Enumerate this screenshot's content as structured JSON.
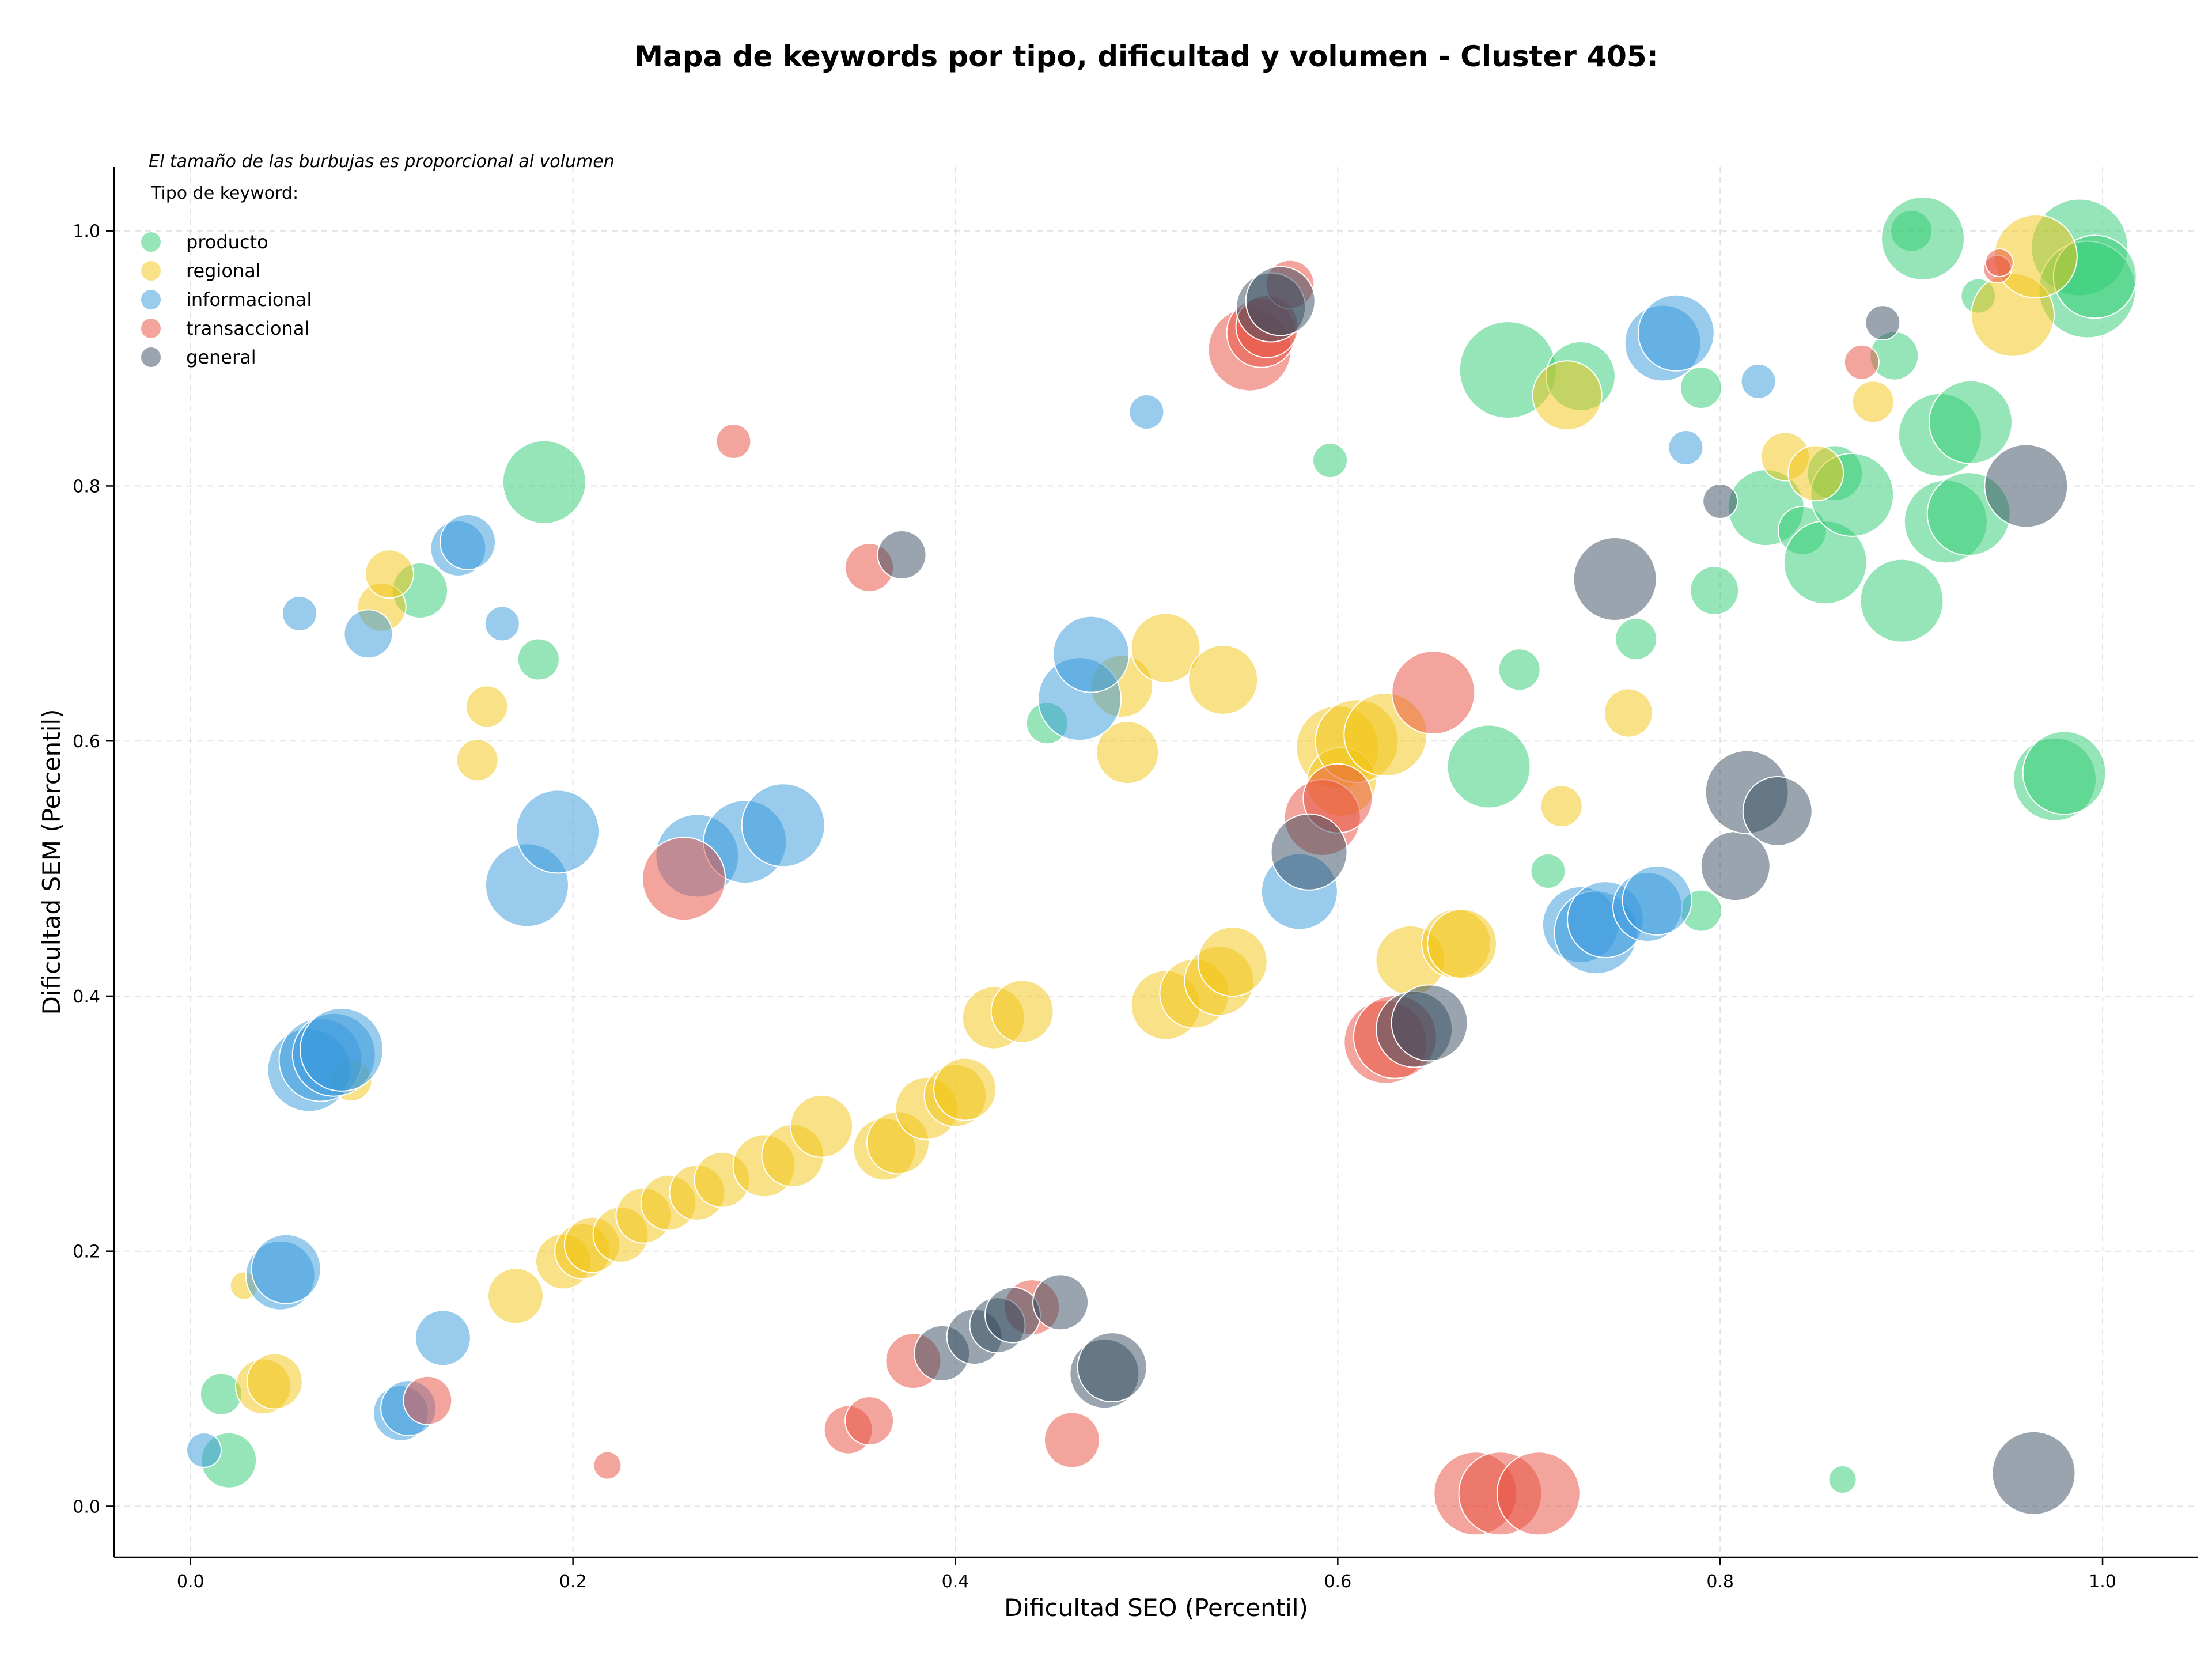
{
  "chart_data": {
    "type": "scatter",
    "title": "Mapa de keywords por tipo, dificultad y volumen - Cluster 405:",
    "subtitle": "El tamaño de las burbujas es proporcional al volumen",
    "xlabel": "Dificultad SEO (Percentil)",
    "ylabel": "Dificultad SEM (Percentil)",
    "xlim": [
      -0.04,
      1.05
    ],
    "ylim": [
      -0.04,
      1.05
    ],
    "x_ticks": [
      "0.0",
      "0.2",
      "0.4",
      "0.6",
      "0.8",
      "1.0"
    ],
    "x_tick_values": [
      0.0,
      0.2,
      0.4,
      0.6,
      0.8,
      1.0
    ],
    "y_ticks": [
      "0.0",
      "0.2",
      "0.4",
      "0.6",
      "0.8",
      "1.0"
    ],
    "y_tick_values": [
      0.0,
      0.2,
      0.4,
      0.6,
      0.8,
      1.0
    ],
    "grid": true,
    "legend_title": "Tipo de keyword:",
    "legend_position": "top-left",
    "series": [
      {
        "name": "producto",
        "color": "#2ecc71",
        "points": [
          [
            0.016,
            0.088,
            3
          ],
          [
            0.02,
            0.036,
            4
          ],
          [
            0.12,
            0.718,
            4
          ],
          [
            0.182,
            0.664,
            3
          ],
          [
            0.185,
            0.803,
            6
          ],
          [
            0.448,
            0.614,
            3
          ],
          [
            0.596,
            0.82,
            2.5
          ],
          [
            0.679,
            0.58,
            6
          ],
          [
            0.689,
            0.891,
            7
          ],
          [
            0.695,
            0.656,
            3
          ],
          [
            0.71,
            0.498,
            2.5
          ],
          [
            0.727,
            0.886,
            5
          ],
          [
            0.756,
            0.68,
            3
          ],
          [
            0.79,
            0.467,
            3
          ],
          [
            0.79,
            0.877,
            3
          ],
          [
            0.797,
            0.718,
            3.5
          ],
          [
            0.824,
            0.783,
            5.5
          ],
          [
            0.843,
            0.765,
            3.5
          ],
          [
            0.855,
            0.74,
            6
          ],
          [
            0.86,
            0.81,
            4
          ],
          [
            0.864,
            0.021,
            2
          ],
          [
            0.869,
            0.793,
            6
          ],
          [
            0.891,
            0.902,
            3.5
          ],
          [
            0.895,
            0.71,
            6
          ],
          [
            0.9,
            1.0,
            3
          ],
          [
            0.906,
            0.994,
            6
          ],
          [
            0.915,
            0.84,
            6
          ],
          [
            0.918,
            0.772,
            6
          ],
          [
            0.93,
            0.778,
            6
          ],
          [
            0.931,
            0.85,
            6
          ],
          [
            0.935,
            0.949,
            2.5
          ],
          [
            0.975,
            0.57,
            6
          ],
          [
            0.98,
            0.575,
            6
          ],
          [
            0.988,
            0.987,
            7
          ],
          [
            0.992,
            0.954,
            7
          ],
          [
            0.996,
            0.964,
            6
          ]
        ]
      },
      {
        "name": "regional",
        "color": "#f1c40f",
        "points": [
          [
            0.028,
            0.173,
            2
          ],
          [
            0.038,
            0.094,
            4
          ],
          [
            0.044,
            0.098,
            4
          ],
          [
            0.084,
            0.334,
            3
          ],
          [
            0.1,
            0.705,
            3.5
          ],
          [
            0.104,
            0.731,
            3.5
          ],
          [
            0.15,
            0.585,
            3
          ],
          [
            0.155,
            0.627,
            3
          ],
          [
            0.17,
            0.165,
            4
          ],
          [
            0.195,
            0.192,
            4
          ],
          [
            0.205,
            0.2,
            4
          ],
          [
            0.21,
            0.205,
            4
          ],
          [
            0.225,
            0.213,
            4
          ],
          [
            0.237,
            0.228,
            4
          ],
          [
            0.25,
            0.238,
            4
          ],
          [
            0.265,
            0.246,
            4
          ],
          [
            0.278,
            0.256,
            4
          ],
          [
            0.3,
            0.267,
            4.5
          ],
          [
            0.315,
            0.275,
            4.5
          ],
          [
            0.33,
            0.298,
            4.5
          ],
          [
            0.363,
            0.28,
            4.5
          ],
          [
            0.37,
            0.285,
            4.5
          ],
          [
            0.385,
            0.312,
            4.5
          ],
          [
            0.4,
            0.322,
            4.5
          ],
          [
            0.405,
            0.327,
            4.5
          ],
          [
            0.42,
            0.383,
            4.5
          ],
          [
            0.435,
            0.388,
            4.5
          ],
          [
            0.487,
            0.643,
            4.5
          ],
          [
            0.49,
            0.591,
            4.5
          ],
          [
            0.51,
            0.673,
            5
          ],
          [
            0.51,
            0.393,
            5
          ],
          [
            0.525,
            0.402,
            5
          ],
          [
            0.538,
            0.412,
            5
          ],
          [
            0.54,
            0.648,
            5
          ],
          [
            0.545,
            0.427,
            5
          ],
          [
            0.6,
            0.595,
            6
          ],
          [
            0.602,
            0.568,
            5
          ],
          [
            0.61,
            0.6,
            6
          ],
          [
            0.625,
            0.605,
            6
          ],
          [
            0.638,
            0.428,
            5
          ],
          [
            0.662,
            0.441,
            5
          ],
          [
            0.665,
            0.441,
            5
          ],
          [
            0.717,
            0.549,
            3
          ],
          [
            0.72,
            0.871,
            5
          ],
          [
            0.752,
            0.622,
            3.5
          ],
          [
            0.834,
            0.823,
            3.5
          ],
          [
            0.85,
            0.81,
            4
          ],
          [
            0.88,
            0.866,
            3
          ],
          [
            0.953,
            0.934,
            6
          ],
          [
            0.965,
            0.98,
            6
          ]
        ]
      },
      {
        "name": "informacional",
        "color": "#3498db",
        "points": [
          [
            0.007,
            0.044,
            2.5
          ],
          [
            0.047,
            0.181,
            5
          ],
          [
            0.05,
            0.186,
            5
          ],
          [
            0.057,
            0.7,
            2.5
          ],
          [
            0.062,
            0.342,
            6
          ],
          [
            0.068,
            0.35,
            6
          ],
          [
            0.075,
            0.354,
            6
          ],
          [
            0.079,
            0.358,
            6
          ],
          [
            0.093,
            0.684,
            3.5
          ],
          [
            0.11,
            0.073,
            4
          ],
          [
            0.114,
            0.077,
            4
          ],
          [
            0.132,
            0.132,
            4
          ],
          [
            0.14,
            0.751,
            4
          ],
          [
            0.145,
            0.756,
            4
          ],
          [
            0.163,
            0.692,
            2.5
          ],
          [
            0.176,
            0.487,
            6
          ],
          [
            0.192,
            0.529,
            6
          ],
          [
            0.265,
            0.51,
            6
          ],
          [
            0.29,
            0.521,
            6
          ],
          [
            0.31,
            0.534,
            6
          ],
          [
            0.465,
            0.633,
            6
          ],
          [
            0.471,
            0.668,
            5.5
          ],
          [
            0.5,
            0.858,
            2.5
          ],
          [
            0.58,
            0.482,
            5.5
          ],
          [
            0.727,
            0.456,
            5.5
          ],
          [
            0.735,
            0.45,
            6
          ],
          [
            0.74,
            0.46,
            5.5
          ],
          [
            0.762,
            0.47,
            5
          ],
          [
            0.767,
            0.475,
            5
          ],
          [
            0.77,
            0.912,
            5.5
          ],
          [
            0.777,
            0.92,
            5.5
          ],
          [
            0.782,
            0.83,
            2.5
          ],
          [
            0.82,
            0.882,
            2.5
          ]
        ]
      },
      {
        "name": "transaccional",
        "color": "#e74c3c",
        "points": [
          [
            0.124,
            0.083,
            3.5
          ],
          [
            0.218,
            0.032,
            2
          ],
          [
            0.258,
            0.492,
            6
          ],
          [
            0.284,
            0.835,
            2.5
          ],
          [
            0.344,
            0.06,
            3.5
          ],
          [
            0.355,
            0.067,
            3.5
          ],
          [
            0.355,
            0.736,
            3.5
          ],
          [
            0.378,
            0.114,
            4
          ],
          [
            0.44,
            0.156,
            4
          ],
          [
            0.461,
            0.052,
            4
          ],
          [
            0.554,
            0.907,
            6
          ],
          [
            0.56,
            0.92,
            5
          ],
          [
            0.563,
            0.925,
            4.5
          ],
          [
            0.575,
            0.958,
            3.5
          ],
          [
            0.592,
            0.54,
            5.5
          ],
          [
            0.6,
            0.555,
            5
          ],
          [
            0.625,
            0.364,
            6
          ],
          [
            0.63,
            0.368,
            6
          ],
          [
            0.65,
            0.638,
            6
          ],
          [
            0.672,
            0.01,
            6
          ],
          [
            0.685,
            0.01,
            6
          ],
          [
            0.705,
            0.01,
            6
          ],
          [
            0.874,
            0.897,
            2.5
          ],
          [
            0.945,
            0.97,
            2
          ],
          [
            0.946,
            0.975,
            2
          ]
        ]
      },
      {
        "name": "general",
        "color": "#34495e",
        "points": [
          [
            0.372,
            0.746,
            3.5
          ],
          [
            0.393,
            0.12,
            4
          ],
          [
            0.41,
            0.133,
            4
          ],
          [
            0.422,
            0.142,
            4
          ],
          [
            0.43,
            0.15,
            4
          ],
          [
            0.455,
            0.16,
            4
          ],
          [
            0.478,
            0.104,
            5
          ],
          [
            0.482,
            0.109,
            5
          ],
          [
            0.565,
            0.94,
            5
          ],
          [
            0.57,
            0.945,
            5
          ],
          [
            0.585,
            0.513,
            5.5
          ],
          [
            0.64,
            0.374,
            5.5
          ],
          [
            0.648,
            0.379,
            5.5
          ],
          [
            0.745,
            0.727,
            6
          ],
          [
            0.8,
            0.788,
            2.5
          ],
          [
            0.808,
            0.502,
            5
          ],
          [
            0.814,
            0.56,
            6
          ],
          [
            0.83,
            0.545,
            5
          ],
          [
            0.885,
            0.928,
            2.5
          ],
          [
            0.96,
            0.8,
            6
          ],
          [
            0.964,
            0.026,
            6
          ]
        ]
      }
    ]
  }
}
